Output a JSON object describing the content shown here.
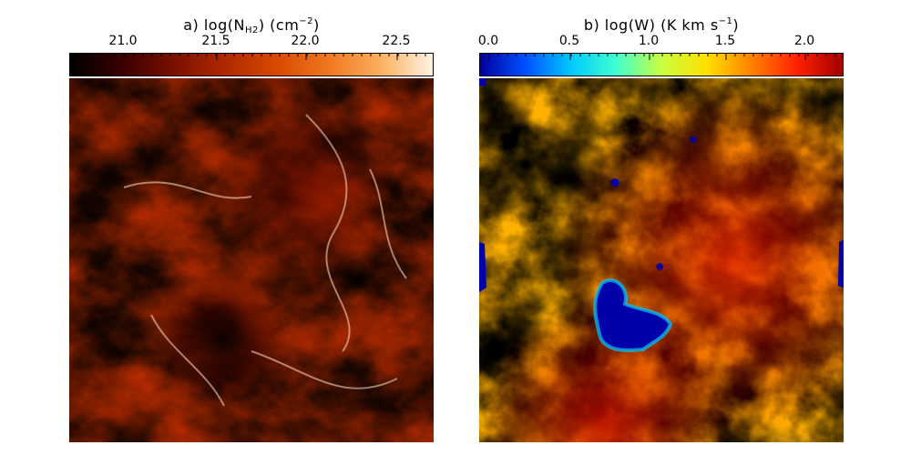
{
  "panel_a": {
    "title_prefix": "a) log(N",
    "title_sub": "H2",
    "title_mid": ")  (cm",
    "title_sup": "−2",
    "title_suffix": ")",
    "ticks": [
      "21.0",
      "21.5",
      "22.0",
      "22.5"
    ],
    "colormap": [
      "#000000",
      "#3a0000",
      "#7a1000",
      "#b02800",
      "#d84a00",
      "#f07820",
      "#fcb060",
      "#fff2e4"
    ]
  },
  "panel_b": {
    "title_prefix": "b) log(W)  (K km s",
    "title_sup": "−1",
    "title_suffix": ")",
    "ticks": [
      "0.0",
      "0.5",
      "1.0",
      "1.5",
      "2.0"
    ],
    "colormap": [
      "#0000a0",
      "#0050ff",
      "#00c8ff",
      "#40ffd0",
      "#c8ff40",
      "#ffe000",
      "#ff8000",
      "#ff2000",
      "#a00000"
    ]
  }
}
